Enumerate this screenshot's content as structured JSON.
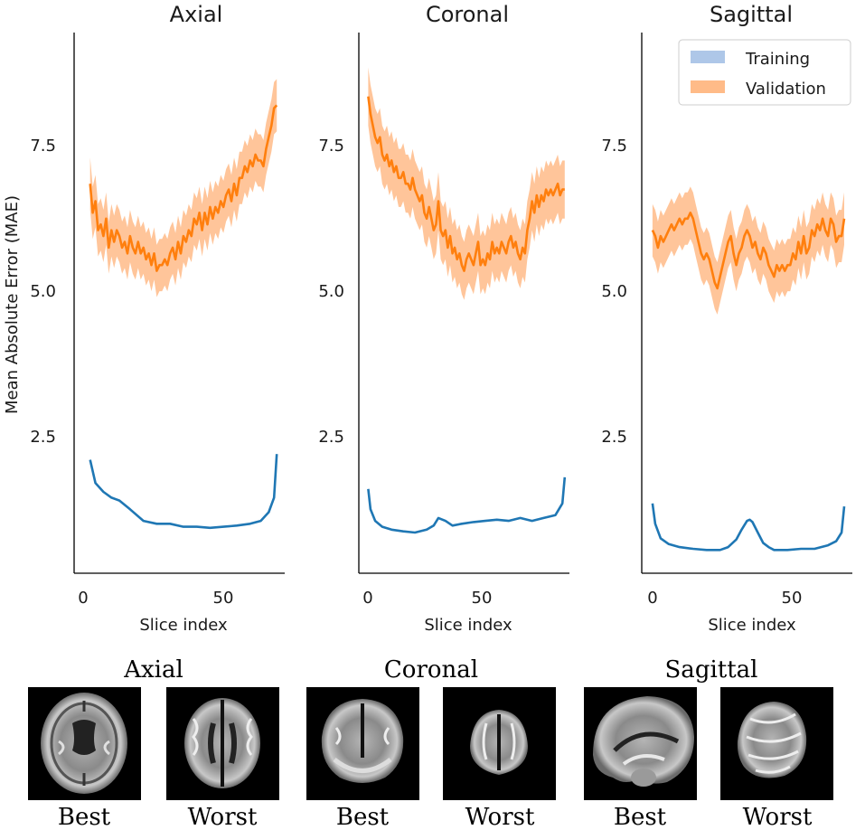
{
  "chart_data": {
    "type": "line",
    "ylabel": "Mean Absolute Error (MAE)",
    "legend": {
      "position": "top-right",
      "entries": [
        "Training",
        "Validation"
      ]
    },
    "colors": {
      "training": "#1f77b4",
      "training_band": "#aec7e8",
      "validation": "#ff7f0e",
      "validation_band": "#ffbb88"
    },
    "panels": [
      {
        "title": "Axial",
        "xlabel": "Slice index",
        "xlim": [
          -6,
          73
        ],
        "ylim": [
          0.1,
          9.4
        ],
        "xticks": [
          0,
          50
        ],
        "yticks": [
          2.5,
          5.0,
          7.5
        ],
        "series": [
          {
            "name": "Training",
            "x": [
              0,
              2,
              5,
              8,
              11,
              15,
              20,
              25,
              30,
              35,
              40,
              45,
              50,
              55,
              60,
              64,
              67,
              69,
              70
            ],
            "values": [
              2.05,
              1.65,
              1.5,
              1.4,
              1.35,
              1.2,
              1.0,
              0.95,
              0.95,
              0.9,
              0.9,
              0.88,
              0.9,
              0.92,
              0.95,
              1.0,
              1.15,
              1.4,
              2.15
            ]
          },
          {
            "name": "Validation",
            "x": [
              0,
              1,
              2,
              3,
              4,
              5,
              6,
              7,
              8,
              9,
              10,
              11,
              12,
              13,
              14,
              15,
              16,
              17,
              18,
              19,
              20,
              21,
              22,
              23,
              24,
              25,
              26,
              27,
              28,
              29,
              30,
              31,
              32,
              33,
              34,
              35,
              36,
              37,
              38,
              39,
              40,
              41,
              42,
              43,
              44,
              45,
              46,
              47,
              48,
              49,
              50,
              51,
              52,
              53,
              54,
              55,
              56,
              57,
              58,
              59,
              60,
              61,
              62,
              63,
              64,
              65,
              66,
              67,
              68,
              69,
              70
            ],
            "values": [
              6.8,
              6.3,
              6.5,
              6.0,
              6.1,
              5.9,
              6.2,
              5.7,
              6.0,
              5.8,
              6.0,
              5.9,
              5.7,
              5.8,
              5.6,
              5.9,
              5.7,
              5.6,
              5.8,
              5.6,
              5.7,
              5.5,
              5.6,
              5.4,
              5.6,
              5.3,
              5.4,
              5.4,
              5.5,
              5.4,
              5.6,
              5.7,
              5.5,
              5.8,
              5.6,
              5.9,
              5.8,
              6.0,
              5.9,
              6.2,
              6.1,
              6.3,
              6.0,
              6.3,
              6.1,
              6.4,
              6.2,
              6.4,
              6.3,
              6.5,
              6.4,
              6.6,
              6.7,
              6.5,
              6.8,
              6.6,
              6.9,
              6.9,
              7.1,
              7.0,
              7.2,
              7.1,
              7.3,
              7.2,
              7.2,
              7.1,
              7.4,
              7.6,
              7.8,
              8.1,
              8.15
            ],
            "band": 0.45
          }
        ]
      },
      {
        "title": "Coronal",
        "xlabel": "Slice index",
        "xlim": [
          -4,
          86
        ],
        "ylim": [
          0.1,
          9.4
        ],
        "xticks": [
          0,
          50
        ],
        "yticks": [
          2.5,
          5.0,
          7.5
        ],
        "series": [
          {
            "name": "Training",
            "x": [
              0,
              1,
              3,
              6,
              10,
              15,
              20,
              25,
              28,
              30,
              33,
              36,
              40,
              45,
              50,
              55,
              60,
              65,
              70,
              75,
              80,
              83,
              84
            ],
            "values": [
              1.55,
              1.2,
              1.0,
              0.9,
              0.85,
              0.82,
              0.8,
              0.85,
              0.92,
              1.05,
              1.0,
              0.92,
              0.95,
              0.98,
              1.0,
              1.02,
              1.0,
              1.05,
              1.0,
              1.05,
              1.1,
              1.3,
              1.75
            ]
          },
          {
            "name": "Validation",
            "x": [
              0,
              1,
              2,
              3,
              4,
              5,
              6,
              7,
              8,
              9,
              10,
              11,
              12,
              13,
              14,
              15,
              16,
              17,
              18,
              19,
              20,
              21,
              22,
              23,
              24,
              25,
              26,
              27,
              28,
              29,
              30,
              31,
              32,
              33,
              34,
              35,
              36,
              37,
              38,
              39,
              40,
              41,
              42,
              43,
              44,
              45,
              46,
              47,
              48,
              49,
              50,
              51,
              52,
              53,
              54,
              55,
              56,
              57,
              58,
              59,
              60,
              61,
              62,
              63,
              64,
              65,
              66,
              67,
              68,
              69,
              70,
              71,
              72,
              73,
              74,
              75,
              76,
              77,
              78,
              79,
              80,
              81,
              82,
              83,
              84
            ],
            "values": [
              8.3,
              8.0,
              7.8,
              7.6,
              7.5,
              7.6,
              7.3,
              7.2,
              7.3,
              7.1,
              7.2,
              7.0,
              7.1,
              6.9,
              6.9,
              7.0,
              6.8,
              6.8,
              6.7,
              6.9,
              6.7,
              6.6,
              6.5,
              6.6,
              6.3,
              6.2,
              6.4,
              6.2,
              6.0,
              6.1,
              6.5,
              6.0,
              5.9,
              6.0,
              5.7,
              5.9,
              5.6,
              5.7,
              5.5,
              5.6,
              5.4,
              5.3,
              5.5,
              5.6,
              5.5,
              5.4,
              5.6,
              5.8,
              5.4,
              5.5,
              5.4,
              5.6,
              5.5,
              5.8,
              5.6,
              5.7,
              5.6,
              5.8,
              5.7,
              5.6,
              5.8,
              5.9,
              5.7,
              5.8,
              5.6,
              5.5,
              5.7,
              5.6,
              6.0,
              6.2,
              6.5,
              6.3,
              6.6,
              6.4,
              6.6,
              6.5,
              6.7,
              6.6,
              6.7,
              6.6,
              6.7,
              6.8,
              6.6,
              6.7,
              6.7
            ],
            "band": 0.5
          }
        ]
      },
      {
        "title": "Sagittal",
        "xlabel": "Slice index",
        "xlim": [
          -4,
          74
        ],
        "ylim": [
          0.1,
          9.4
        ],
        "xticks": [
          0,
          50
        ],
        "yticks": [
          2.5,
          5.0,
          7.5
        ],
        "series": [
          {
            "name": "Training",
            "x": [
              0,
              1,
              3,
              6,
              10,
              15,
              20,
              25,
              28,
              31,
              33,
              35,
              36,
              37,
              39,
              41,
              43,
              45,
              50,
              55,
              60,
              65,
              68,
              70,
              71
            ],
            "values": [
              1.3,
              0.95,
              0.7,
              0.6,
              0.55,
              0.52,
              0.5,
              0.5,
              0.55,
              0.68,
              0.85,
              1.0,
              1.02,
              0.98,
              0.8,
              0.62,
              0.55,
              0.5,
              0.5,
              0.52,
              0.52,
              0.58,
              0.65,
              0.8,
              1.25
            ]
          },
          {
            "name": "Validation",
            "x": [
              0,
              1,
              2,
              3,
              4,
              5,
              6,
              7,
              8,
              9,
              10,
              11,
              12,
              13,
              14,
              15,
              16,
              17,
              18,
              19,
              20,
              21,
              22,
              23,
              24,
              25,
              26,
              27,
              28,
              29,
              30,
              31,
              32,
              33,
              34,
              35,
              36,
              37,
              38,
              39,
              40,
              41,
              42,
              43,
              44,
              45,
              46,
              47,
              48,
              49,
              50,
              51,
              52,
              53,
              54,
              55,
              56,
              57,
              58,
              59,
              60,
              61,
              62,
              63,
              64,
              65,
              66,
              67,
              68,
              69,
              70,
              71
            ],
            "values": [
              6.0,
              5.9,
              5.7,
              5.9,
              5.8,
              5.9,
              6.0,
              6.1,
              6.0,
              6.1,
              6.2,
              6.1,
              6.2,
              6.2,
              6.3,
              6.2,
              6.0,
              5.8,
              5.6,
              5.5,
              5.6,
              5.5,
              5.3,
              5.1,
              5.0,
              5.2,
              5.4,
              5.6,
              5.8,
              5.9,
              5.6,
              5.4,
              5.6,
              5.7,
              5.9,
              6.0,
              5.9,
              5.7,
              5.8,
              5.6,
              5.5,
              5.7,
              5.6,
              5.4,
              5.3,
              5.2,
              5.4,
              5.3,
              5.4,
              5.3,
              5.4,
              5.4,
              5.6,
              5.5,
              5.8,
              5.6,
              5.9,
              5.6,
              5.7,
              6.0,
              5.9,
              6.1,
              6.0,
              6.2,
              6.0,
              5.9,
              6.2,
              6.1,
              5.8,
              5.9,
              5.9,
              6.2
            ],
            "band": 0.45
          }
        ]
      }
    ]
  },
  "gallery": {
    "groups": [
      {
        "title": "Axial",
        "best_label": "Best",
        "worst_label": "Worst"
      },
      {
        "title": "Coronal",
        "best_label": "Best",
        "worst_label": "Worst"
      },
      {
        "title": "Sagittal",
        "best_label": "Best",
        "worst_label": "Worst"
      }
    ]
  }
}
